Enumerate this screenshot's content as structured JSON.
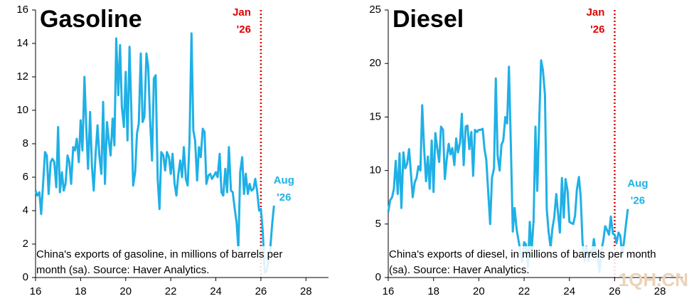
{
  "chart_data": [
    {
      "type": "line",
      "title": "Gasoline",
      "color": "#1fb0e6",
      "vline": 26,
      "vline_color": "#e00000",
      "vline_label": [
        "Jan",
        "'26"
      ],
      "end_label": [
        "Aug",
        "'26"
      ],
      "note": [
        "China's exports of gasoline, in millions of barrels per",
        "month (sa). Source: Haver Analytics."
      ],
      "xlim": [
        16,
        29
      ],
      "xticks": [
        16,
        18,
        20,
        22,
        24,
        26,
        28
      ],
      "ylim": [
        0,
        16
      ],
      "yticks": [
        0,
        2,
        4,
        6,
        8,
        10,
        12,
        14,
        16
      ],
      "x": [
        16,
        16.08,
        16.17,
        16.25,
        16.33,
        16.42,
        16.5,
        16.58,
        16.67,
        16.75,
        16.83,
        16.92,
        17,
        17.08,
        17.17,
        17.25,
        17.33,
        17.42,
        17.5,
        17.58,
        17.67,
        17.75,
        17.83,
        17.92,
        18,
        18.08,
        18.17,
        18.25,
        18.33,
        18.42,
        18.5,
        18.58,
        18.67,
        18.75,
        18.83,
        18.92,
        19,
        19.08,
        19.17,
        19.25,
        19.33,
        19.42,
        19.5,
        19.58,
        19.67,
        19.75,
        19.83,
        19.92,
        20,
        20.08,
        20.17,
        20.25,
        20.33,
        20.42,
        20.5,
        20.58,
        20.67,
        20.75,
        20.83,
        20.92,
        21,
        21.08,
        21.17,
        21.25,
        21.33,
        21.42,
        21.5,
        21.58,
        21.67,
        21.75,
        21.83,
        21.92,
        22,
        22.08,
        22.17,
        22.25,
        22.33,
        22.42,
        22.5,
        22.58,
        22.67,
        22.75,
        22.83,
        22.92,
        23,
        23.08,
        23.17,
        23.25,
        23.33,
        23.42,
        23.5,
        23.58,
        23.67,
        23.75,
        23.83,
        23.92,
        24,
        24.08,
        24.17,
        24.25,
        24.33,
        24.42,
        24.5,
        24.58,
        24.67,
        24.75,
        24.83,
        24.92,
        25,
        25.08,
        25.17,
        25.25,
        25.33,
        25.42,
        25.5,
        25.58,
        25.67,
        25.75,
        25.83,
        25.92,
        26,
        26.08,
        26.17,
        26.25,
        26.33,
        26.42,
        26.5,
        26.58
      ],
      "values": [
        5.2,
        4.9,
        5.1,
        3.8,
        5.5,
        7.5,
        7.3,
        5.0,
        6.9,
        7.1,
        6.9,
        5.4,
        9.0,
        5.1,
        6.3,
        5.2,
        5.6,
        7.3,
        6.9,
        5.6,
        7.8,
        7.6,
        8.3,
        6.9,
        9.4,
        7.6,
        12.0,
        9.0,
        6.5,
        9.9,
        6.7,
        5.2,
        7.5,
        9.1,
        7.3,
        6.2,
        10.5,
        5.6,
        9.3,
        8.2,
        7.3,
        9.5,
        7.9,
        14.3,
        10.9,
        13.9,
        10.2,
        9.0,
        12.3,
        8.2,
        13.8,
        10.0,
        5.5,
        6.3,
        8.6,
        9.2,
        13.4,
        9.3,
        9.6,
        13.4,
        12.6,
        9.5,
        7.0,
        11.9,
        12.1,
        5.9,
        4.1,
        7.5,
        7.3,
        6.4,
        7.5,
        7.2,
        6.2,
        7.4,
        5.6,
        4.9,
        6.1,
        7.0,
        6.0,
        7.8,
        5.9,
        5.5,
        8.1,
        14.6,
        8.8,
        8.2,
        5.8,
        7.8,
        7.2,
        8.9,
        8.7,
        5.6,
        6.1,
        6.2,
        5.9,
        6.1,
        6.3,
        6.0,
        7.4,
        5.1,
        4.9,
        6.5,
        5.1,
        7.8,
        5.2,
        5.1,
        4.2,
        3.3,
        1.7,
        6.3,
        7.2,
        5.0,
        6.2,
        5.0,
        5.6,
        5.2,
        5.3,
        5.9,
        5.2,
        4.0,
        4.1,
        2.8,
        0.3,
        0.4,
        0.9,
        1.8,
        3.2,
        4.3
      ]
    },
    {
      "type": "line",
      "title": "Diesel",
      "color": "#1fb0e6",
      "vline": 26,
      "vline_color": "#e00000",
      "vline_label": [
        "Jan",
        "'26"
      ],
      "end_label": [
        "Aug",
        "'26"
      ],
      "note": [
        "China's exports of diesel, in millions of barrels per month",
        "(sa). Source: Haver Analytics."
      ],
      "xlim": [
        16,
        29
      ],
      "xticks": [
        16,
        18,
        20,
        22,
        24,
        26,
        28
      ],
      "ylim": [
        0,
        25
      ],
      "yticks": [
        0,
        5,
        10,
        15,
        20,
        25
      ],
      "x": [
        16,
        16.08,
        16.17,
        16.25,
        16.33,
        16.42,
        16.5,
        16.58,
        16.67,
        16.75,
        16.83,
        16.92,
        17,
        17.08,
        17.17,
        17.25,
        17.33,
        17.42,
        17.5,
        17.58,
        17.67,
        17.75,
        17.83,
        17.92,
        18,
        18.08,
        18.17,
        18.25,
        18.33,
        18.42,
        18.5,
        18.58,
        18.67,
        18.75,
        18.83,
        18.92,
        19,
        19.08,
        19.17,
        19.25,
        19.33,
        19.42,
        19.5,
        19.58,
        19.67,
        19.75,
        19.83,
        19.92,
        20,
        20.08,
        20.17,
        20.25,
        20.33,
        20.42,
        20.5,
        20.58,
        20.67,
        20.75,
        20.83,
        20.92,
        21,
        21.08,
        21.17,
        21.25,
        21.33,
        21.42,
        21.5,
        21.58,
        21.67,
        21.75,
        21.83,
        21.92,
        22,
        22.08,
        22.17,
        22.25,
        22.33,
        22.42,
        22.5,
        22.58,
        22.67,
        22.75,
        22.83,
        22.92,
        23,
        23.08,
        23.17,
        23.25,
        23.33,
        23.42,
        23.5,
        23.58,
        23.67,
        23.75,
        23.83,
        23.92,
        24,
        24.08,
        24.17,
        24.25,
        24.33,
        24.42,
        24.5,
        24.58,
        24.67,
        24.75,
        24.83,
        24.92,
        25,
        25.08,
        25.17,
        25.25,
        25.33,
        25.42,
        25.5,
        25.58,
        25.67,
        25.75,
        25.83,
        25.92,
        26,
        26.08,
        26.17,
        26.25,
        26.33,
        26.42,
        26.5,
        26.58
      ],
      "values": [
        6.1,
        7.2,
        7.5,
        8.3,
        10.9,
        7.8,
        11.6,
        6.5,
        11.7,
        10.2,
        10.6,
        12.0,
        9.8,
        7.5,
        8.9,
        9.3,
        10.4,
        10.0,
        16.1,
        12.2,
        9.0,
        11.3,
        8.3,
        12.8,
        8.0,
        13.5,
        12.0,
        10.8,
        14.1,
        13.8,
        9.2,
        11.0,
        12.5,
        11.5,
        12.1,
        10.5,
        13.0,
        11.7,
        12.6,
        15.3,
        10.5,
        14.1,
        14.2,
        12.0,
        13.6,
        9.5,
        13.8,
        13.6,
        13.8,
        13.8,
        13.9,
        12.0,
        11.0,
        7.8,
        5.0,
        9.3,
        10.2,
        18.6,
        11.4,
        10.0,
        12.4,
        12.8,
        15.0,
        14.4,
        19.7,
        11.9,
        4.3,
        6.5,
        4.5,
        3.5,
        2.5,
        1.5,
        3.3,
        3.1,
        1.0,
        5.2,
        2.4,
        5.4,
        14.1,
        8.1,
        14.8,
        20.3,
        19.4,
        17.1,
        6.4,
        4.3,
        2.8,
        4.6,
        5.6,
        7.8,
        6.0,
        4.2,
        9.3,
        5.6,
        9.2,
        8.1,
        5.2,
        5.1,
        5.0,
        5.8,
        8.2,
        9.4,
        7.5,
        3.3,
        1.5,
        2.9,
        1.5,
        2.5,
        2.2,
        3.6,
        2.1,
        2.0,
        0.5,
        2.6,
        3.5,
        4.8,
        4.4,
        4.0,
        5.7,
        4.1,
        4.0,
        3.2,
        4.2,
        3.9,
        2.0,
        3.5,
        5.0,
        6.4
      ]
    }
  ],
  "watermark": "1QH.CN"
}
